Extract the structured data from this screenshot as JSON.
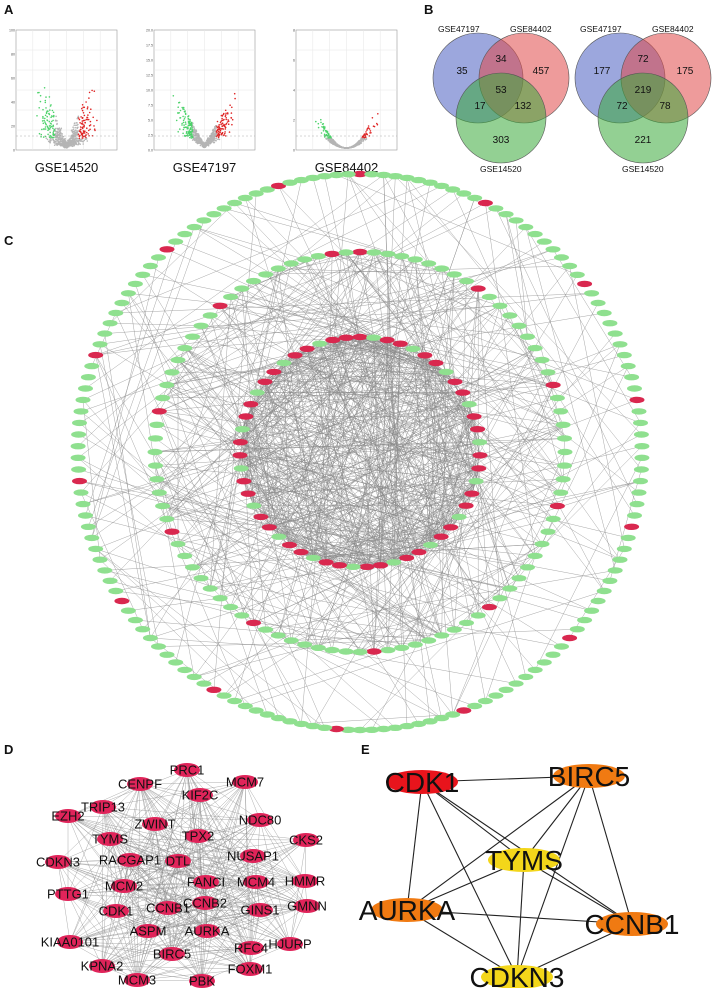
{
  "panels": {
    "A": "A",
    "B": "B",
    "C": "C",
    "D": "D",
    "E": "E"
  },
  "volcano": [
    {
      "label": "GSE14520",
      "y_ticks": [
        "100",
        "80",
        "60",
        "40",
        "20",
        "0"
      ]
    },
    {
      "label": "GSE47197",
      "y_ticks": [
        "20.0",
        "17.5",
        "15.0",
        "12.5",
        "10.0",
        "7.5",
        "5.0",
        "2.5",
        "0.0"
      ]
    },
    {
      "label": "GSE84402",
      "y_ticks": [
        "8",
        "6",
        "4",
        "2",
        "0"
      ]
    }
  ],
  "venn": [
    {
      "labels": {
        "a": "GSE47197",
        "b": "GSE84402",
        "c": "GSE14520"
      },
      "regions": {
        "a_only": "35",
        "ab": "34",
        "b_only": "457",
        "abc": "53",
        "ac": "17",
        "bc": "132",
        "c_only": "303"
      }
    },
    {
      "labels": {
        "a": "GSE47197",
        "b": "GSE84402",
        "c": "GSE14520"
      },
      "regions": {
        "a_only": "177",
        "ab": "72",
        "b_only": "175",
        "abc": "219",
        "ac": "72",
        "bc": "78",
        "c_only": "221"
      }
    }
  ],
  "colors": {
    "up": "#d9284f",
    "down": "#8fe08f",
    "edge": "#8a8a8a",
    "hub_red": "#e8141c",
    "hub_orange": "#f07a12",
    "hub_yellow": "#f3d61a"
  },
  "mcode_genes": [
    {
      "name": "PRC1"
    },
    {
      "name": "MCM7"
    },
    {
      "name": "CENPF"
    },
    {
      "name": "KIF2C"
    },
    {
      "name": "TRIP13"
    },
    {
      "name": "EZH2"
    },
    {
      "name": "NDC80"
    },
    {
      "name": "ZWINT"
    },
    {
      "name": "CKS2"
    },
    {
      "name": "TYMS"
    },
    {
      "name": "TPX2"
    },
    {
      "name": "CDKN3"
    },
    {
      "name": "NUSAP1"
    },
    {
      "name": "RACGAP1"
    },
    {
      "name": "DTL"
    },
    {
      "name": "HMMR"
    },
    {
      "name": "FANCI"
    },
    {
      "name": "MCM4"
    },
    {
      "name": "MCM2"
    },
    {
      "name": "PTTG1"
    },
    {
      "name": "CCNB2"
    },
    {
      "name": "GMNN"
    },
    {
      "name": "CDK1"
    },
    {
      "name": "CCNB1"
    },
    {
      "name": "GINS1"
    },
    {
      "name": "ASPM"
    },
    {
      "name": "AURKA"
    },
    {
      "name": "KIAA0101"
    },
    {
      "name": "HJURP"
    },
    {
      "name": "RFC4"
    },
    {
      "name": "BIRC5"
    },
    {
      "name": "KPNA2"
    },
    {
      "name": "FOXM1"
    },
    {
      "name": "MCM3"
    },
    {
      "name": "PBK"
    }
  ],
  "hub_genes": [
    {
      "name": "CDK1",
      "color": "#e8141c"
    },
    {
      "name": "BIRC5",
      "color": "#f07a12"
    },
    {
      "name": "TYMS",
      "color": "#f3d61a"
    },
    {
      "name": "AURKA",
      "color": "#f07a12"
    },
    {
      "name": "CCNB1",
      "color": "#f07a12"
    },
    {
      "name": "CDKN3",
      "color": "#f3d61a"
    }
  ]
}
